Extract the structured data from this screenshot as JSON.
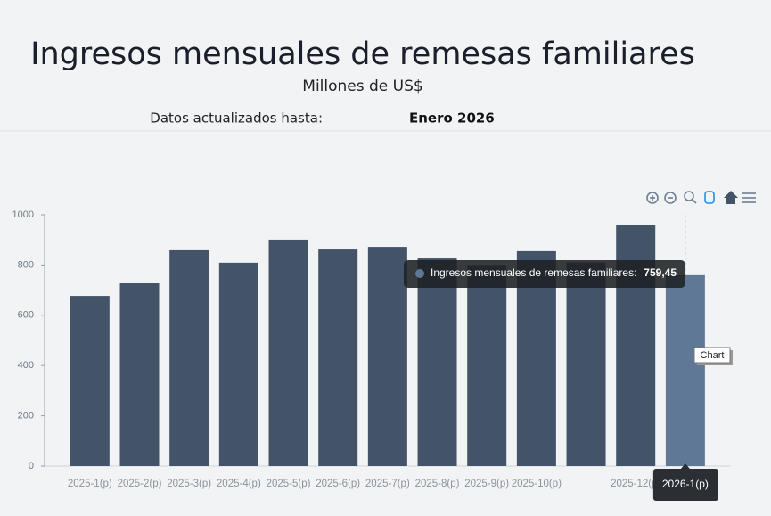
{
  "header": {
    "title": "Ingresos mensuales de remesas familiares",
    "subtitle": "Millones de US$",
    "updated_label": "Datos actualizados hasta:",
    "updated_value": "Enero 2026"
  },
  "chart_data": {
    "type": "bar",
    "categories": [
      "2025-1(p)",
      "2025-2(p)",
      "2025-3(p)",
      "2025-4(p)",
      "2025-5(p)",
      "2025-6(p)",
      "2025-7(p)",
      "2025-8(p)",
      "2025-9(p)",
      "2025-10(p)",
      null,
      "2025-12(p)",
      "2026-1(p)"
    ],
    "series": [
      {
        "name": "Ingresos mensuales de remesas familiares",
        "color": "#435468",
        "values": [
          677,
          730,
          862,
          809,
          901,
          865,
          872,
          826,
          800,
          855,
          810,
          961,
          759.45
        ],
        "value_labels": [
          null,
          null,
          null,
          null,
          null,
          null,
          null,
          null,
          null,
          null,
          null,
          null,
          "759,45"
        ]
      }
    ],
    "highlight_color": "#5f7896",
    "tooltip_label": "Ingresos mensuales de remesas familiares:",
    "ylim": [
      0,
      1000
    ],
    "yticks": [
      0,
      200,
      400,
      600,
      800,
      1000
    ]
  },
  "ui": {
    "chart_tooltip": "Chart"
  }
}
